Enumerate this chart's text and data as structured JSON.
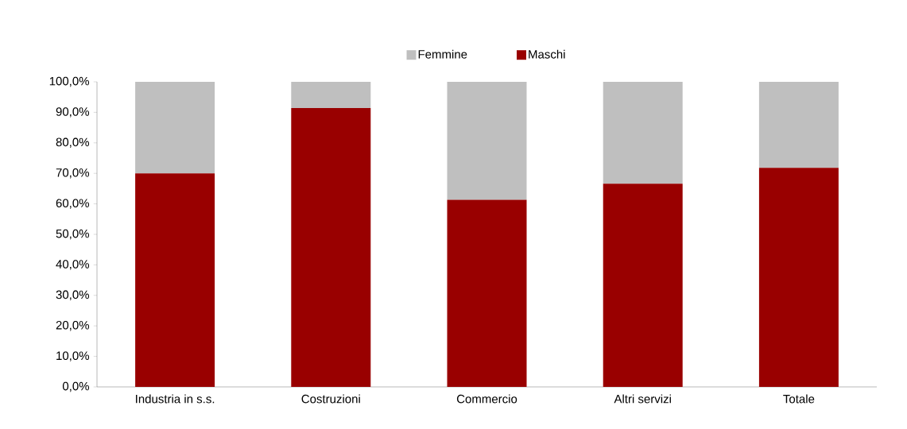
{
  "chart_data": {
    "type": "bar",
    "stacked": true,
    "legend": "top",
    "grid": false,
    "categories": [
      "Industria in s.s.",
      "Costruzioni",
      "Commercio",
      "Altri servizi",
      "Totale"
    ],
    "series": [
      {
        "name": "Maschi",
        "color": "#990000",
        "values": [
          70.0,
          91.4,
          61.3,
          66.6,
          71.8
        ]
      },
      {
        "name": "Femmine",
        "color": "#bfbfbf",
        "values": [
          30.0,
          8.6,
          38.7,
          33.4,
          28.2
        ]
      }
    ],
    "ylim": [
      0,
      100
    ],
    "yticks": [
      {
        "value": 0,
        "label": "0,0%"
      },
      {
        "value": 10,
        "label": "10,0%"
      },
      {
        "value": 20,
        "label": "20,0%"
      },
      {
        "value": 30,
        "label": "30,0%"
      },
      {
        "value": 40,
        "label": "40,0%"
      },
      {
        "value": 50,
        "label": "50,0%"
      },
      {
        "value": 60,
        "label": "60,0%"
      },
      {
        "value": 70,
        "label": "70,0%"
      },
      {
        "value": 80,
        "label": "80,0%"
      },
      {
        "value": 90,
        "label": "90,0%"
      },
      {
        "value": 100,
        "label": "100,0%"
      }
    ]
  }
}
